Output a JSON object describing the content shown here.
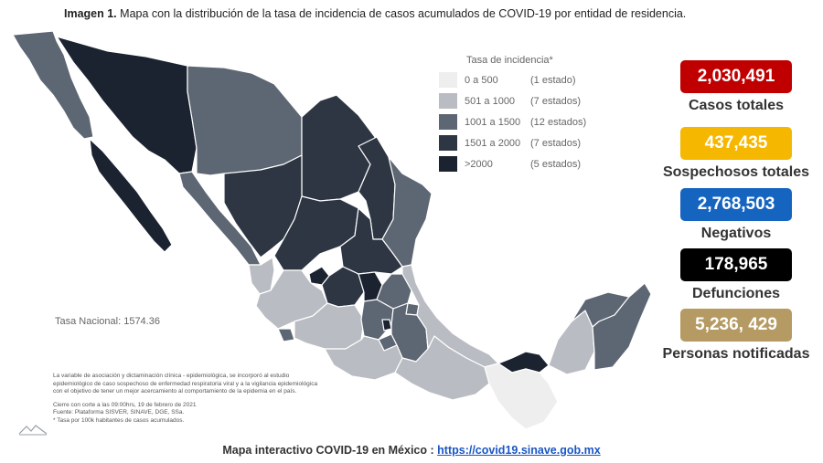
{
  "header": {
    "label": "Imagen 1.",
    "text": "Mapa con la distribución de la tasa de incidencia de casos acumulados de COVID-19 por entidad de residencia."
  },
  "legend": {
    "title": "Tasa de incidencia*",
    "items": [
      {
        "range": "0 a   500",
        "count": "(1 estado)",
        "color": "#eeeeee"
      },
      {
        "range": "501 a  1000",
        "count": "(7 estados)",
        "color": "#b9bcc2"
      },
      {
        "range": "1001 a  1500",
        "count": "(12 estados)",
        "color": "#5d6673"
      },
      {
        "range": "1501 a  2000",
        "count": "(7 estados)",
        "color": "#2e3643"
      },
      {
        "range": ">2000",
        "count": "(5 estados)",
        "color": "#1c2330"
      }
    ]
  },
  "stats": [
    {
      "value": "2,030,491",
      "label": "Casos totales",
      "color": "#c00000"
    },
    {
      "value": "437,435",
      "label": "Sospechosos totales",
      "color": "#f5b700"
    },
    {
      "value": "2,768,503",
      "label": "Negativos",
      "color": "#1565c0"
    },
    {
      "value": "178,965",
      "label": "Defunciones",
      "color": "#000000"
    },
    {
      "value": "5,236, 429",
      "label": "Personas notificadas",
      "color": "#b59a63"
    }
  ],
  "tasa_nacional": "Tasa Nacional: 1574.36",
  "notes": {
    "line1": "La variable de asociación y dictaminación clínica - epidemiológica, se incorporó al estudio",
    "line2": "epidemiológico de caso sospechoso de enfermedad respiratoria viral y a la vigilancia epidemiológica",
    "line3": "con el objetivo de tener un mejor acercamiento al comportamiento de la epidemia en el país.",
    "cierre": "Cierre con corte a las 09:00hrs, 19 de febrero de 2021",
    "fuente": "Fuente: Plataforma SISVER, SINAVE, DGE, SSa.",
    "tasa": "* Tasa por 100k habitantes de casos acumulados."
  },
  "footer": {
    "text": "Mapa interactivo COVID-19 en México :",
    "link": "https://covid19.sinave.gob.mx"
  }
}
